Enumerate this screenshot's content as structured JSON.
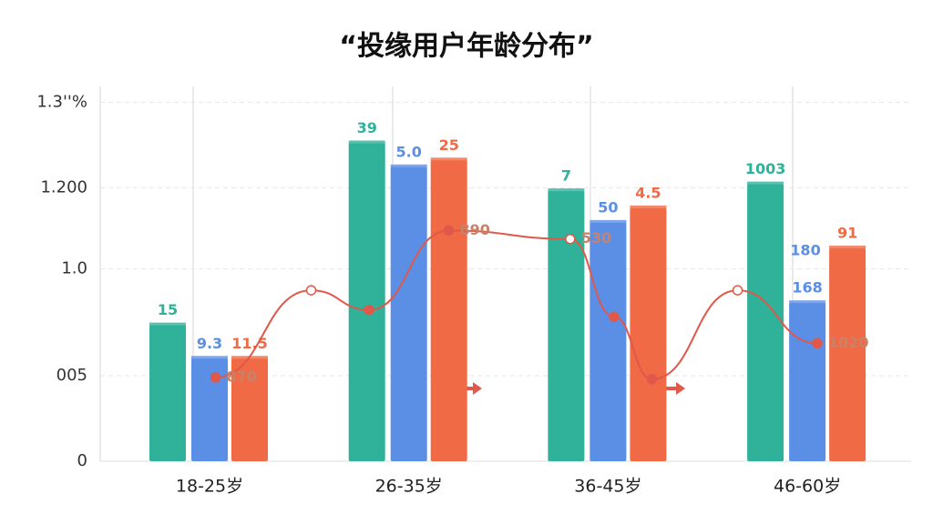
{
  "chart_data": {
    "type": "bar",
    "title": "“投缘用户年龄分布”",
    "categories": [
      "18-25岁",
      "26-35岁",
      "36-45岁",
      "46-60岁"
    ],
    "ylim": [
      0,
      4.3
    ],
    "yticks": [
      0,
      {
        "value": 1,
        "label": "005"
      },
      {
        "value": 2.25,
        "label": "1.0"
      },
      {
        "value": 3.2,
        "label": "1.200"
      },
      {
        "value": 4.2,
        "label": "1.3''%"
      }
    ],
    "grid": true,
    "series": [
      {
        "color": "#2fb19a",
        "values": [
          1.59,
          3.72,
          3.16,
          3.24
        ],
        "value_labels": [
          "15",
          "39",
          "7",
          "1003"
        ]
      },
      {
        "color": "#5b8fe6",
        "values": [
          1.2,
          3.44,
          2.79,
          1.85
        ],
        "value_labels": [
          "9.3",
          "5.0",
          "50",
          "168"
        ]
      },
      {
        "color": "#f06a45",
        "values": [
          1.2,
          3.52,
          2.96,
          2.49
        ],
        "value_labels": [
          "11.5",
          "25",
          "4.5",
          "91"
        ]
      }
    ],
    "line": {
      "color": "#e0584a",
      "xlim": [
        -0.5,
        3.5
      ],
      "x": [
        0.03,
        0.51,
        0.8,
        1.2,
        1.81,
        2.03,
        2.22,
        2.65,
        3.05
      ],
      "values": [
        0.98,
        2.0,
        1.77,
        2.7,
        2.6,
        1.69,
        0.96,
        2.0,
        1.38
      ],
      "value_labels": [
        "870",
        null,
        null,
        "890",
        "530",
        null,
        null,
        null,
        "1020"
      ]
    },
    "annotations": [
      "180"
    ]
  }
}
